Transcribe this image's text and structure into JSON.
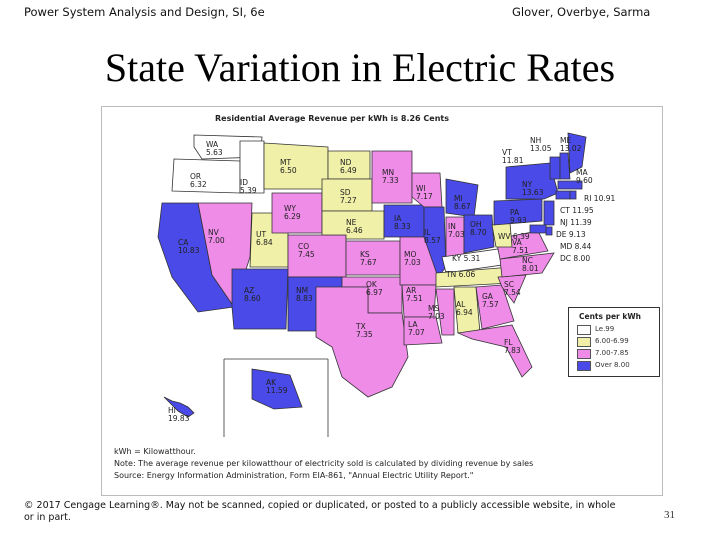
{
  "header": {
    "left": "Power System Analysis and Design, SI, 6e",
    "right": "Glover, Overbye, Sarma"
  },
  "slide": {
    "title": "State Variation in Electric Rates"
  },
  "map": {
    "title": "Residential Average Revenue per kWh is 8.26 Cents",
    "colors": {
      "under6": "#ffffff",
      "c6to7": "#f0f0a8",
      "c7to8": "#ee8ce8",
      "over8": "#4a4ae8"
    },
    "state_labels": [
      {
        "id": "wa",
        "text": "WA\n5.63"
      },
      {
        "id": "or",
        "text": "OR\n6.32"
      },
      {
        "id": "id",
        "text": "ID\n5.39"
      },
      {
        "id": "mt",
        "text": "MT\n6.50"
      },
      {
        "id": "nd",
        "text": "ND\n6.49"
      },
      {
        "id": "mn",
        "text": "MN\n7.33"
      },
      {
        "id": "wi",
        "text": "WI\n7.17"
      },
      {
        "id": "mi",
        "text": "MI\n8.67"
      },
      {
        "id": "sd",
        "text": "SD\n7.27"
      },
      {
        "id": "wy",
        "text": "WY\n6.29"
      },
      {
        "id": "ne",
        "text": "NE\n6.46"
      },
      {
        "id": "ia",
        "text": "IA\n8.33"
      },
      {
        "id": "il",
        "text": "IL\n8.57"
      },
      {
        "id": "in",
        "text": "IN\n7.03"
      },
      {
        "id": "oh",
        "text": "OH\n8.70"
      },
      {
        "id": "pa",
        "text": "PA\n9.93"
      },
      {
        "id": "ny",
        "text": "NY\n13.63"
      },
      {
        "id": "vt",
        "text": "VT\n11.81"
      },
      {
        "id": "nh",
        "text": "NH\n13.05"
      },
      {
        "id": "me",
        "text": "ME\n13.02"
      },
      {
        "id": "ma",
        "text": "MA\n9.60"
      },
      {
        "id": "ri",
        "text": "RI 10.91"
      },
      {
        "id": "ct",
        "text": "CT 11.95"
      },
      {
        "id": "nj",
        "text": "NJ 11.39"
      },
      {
        "id": "de",
        "text": "DE 9.13"
      },
      {
        "id": "md",
        "text": "MD 8.44"
      },
      {
        "id": "dc",
        "text": "DC 8.00"
      },
      {
        "id": "wv",
        "text": "WV 6.39"
      },
      {
        "id": "va",
        "text": "VA\n7.51"
      },
      {
        "id": "ky",
        "text": "KY 5.31"
      },
      {
        "id": "tn",
        "text": "TN 6.06"
      },
      {
        "id": "nc",
        "text": "NC\n8.01"
      },
      {
        "id": "sc",
        "text": "SC\n7.54"
      },
      {
        "id": "ga",
        "text": "GA\n7.57"
      },
      {
        "id": "al",
        "text": "AL\n6.94"
      },
      {
        "id": "ms",
        "text": "MS\n7.03"
      },
      {
        "id": "fl",
        "text": "FL\n7.83"
      },
      {
        "id": "la",
        "text": "LA\n7.07"
      },
      {
        "id": "ar",
        "text": "AR\n7.51"
      },
      {
        "id": "mo",
        "text": "MO\n7.03"
      },
      {
        "id": "ks",
        "text": "KS\n7.67"
      },
      {
        "id": "ok",
        "text": "OK\n6.97"
      },
      {
        "id": "tx",
        "text": "TX\n7.35"
      },
      {
        "id": "nm",
        "text": "NM\n8.83"
      },
      {
        "id": "az",
        "text": "AZ\n8.60"
      },
      {
        "id": "co",
        "text": "CO\n7.45"
      },
      {
        "id": "ut",
        "text": "UT\n6.84"
      },
      {
        "id": "nv",
        "text": "NV\n7.00"
      },
      {
        "id": "ca",
        "text": "CA\n10.83"
      },
      {
        "id": "ak",
        "text": "AK\n11.59"
      },
      {
        "id": "hi",
        "text": "HI\n19.83"
      }
    ],
    "legend": {
      "title": "Cents per kWh",
      "items": [
        {
          "label": "Le.99",
          "color": "#ffffff"
        },
        {
          "label": "6.00-6.99",
          "color": "#f0f0a8"
        },
        {
          "label": "7.00-7.85",
          "color": "#ee8ce8"
        },
        {
          "label": "Over 8.00",
          "color": "#4a4ae8"
        }
      ]
    },
    "notes": [
      "kWh = Kilowatthour.",
      "Note: The average revenue per kilowatthour of electricity sold is calculated by dividing revenue by sales",
      "Source: Energy Information Administration, Form EIA-861, \"Annual Electric Utility Report.\""
    ]
  },
  "footer": {
    "copyright": "© 2017 Cengage Learning®. May not be scanned, copied or duplicated, or posted to a publicly accessible website, in whole or in part.",
    "page_number": "31"
  }
}
